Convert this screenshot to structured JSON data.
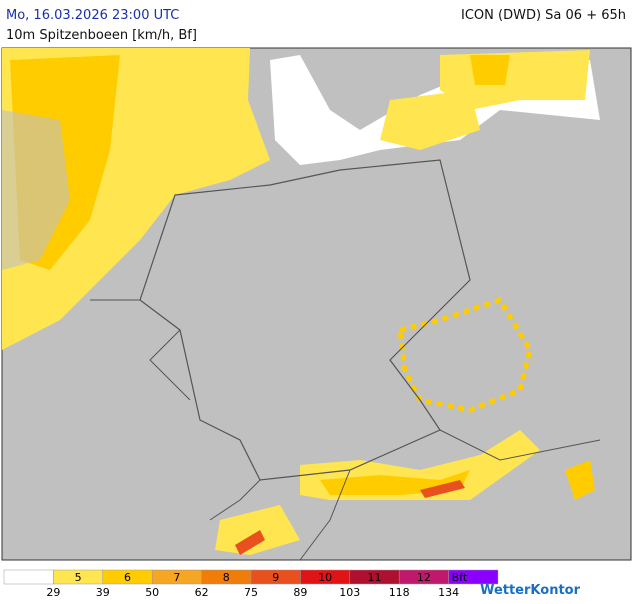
{
  "header": {
    "title": "Mo, 16.03.2026 23:00 UTC",
    "model": "ICON (DWD) Sa 06 + 65h",
    "subtitle": "10m Spitzenboeen [km/h, Bf]"
  },
  "legend": {
    "colors": [
      "#ffffff",
      "#ffe650",
      "#ffcc00",
      "#f5a623",
      "#f07d0a",
      "#e8501e",
      "#e01414",
      "#b01030",
      "#c0186a",
      "#8a00ff"
    ],
    "labels": [
      "5",
      "6",
      "7",
      "8",
      "9",
      "10",
      "11",
      "12",
      "Bft"
    ],
    "thresholds": [
      29,
      39,
      50,
      62,
      75,
      89,
      103,
      118,
      134
    ]
  },
  "brand": "WetterKontor"
}
